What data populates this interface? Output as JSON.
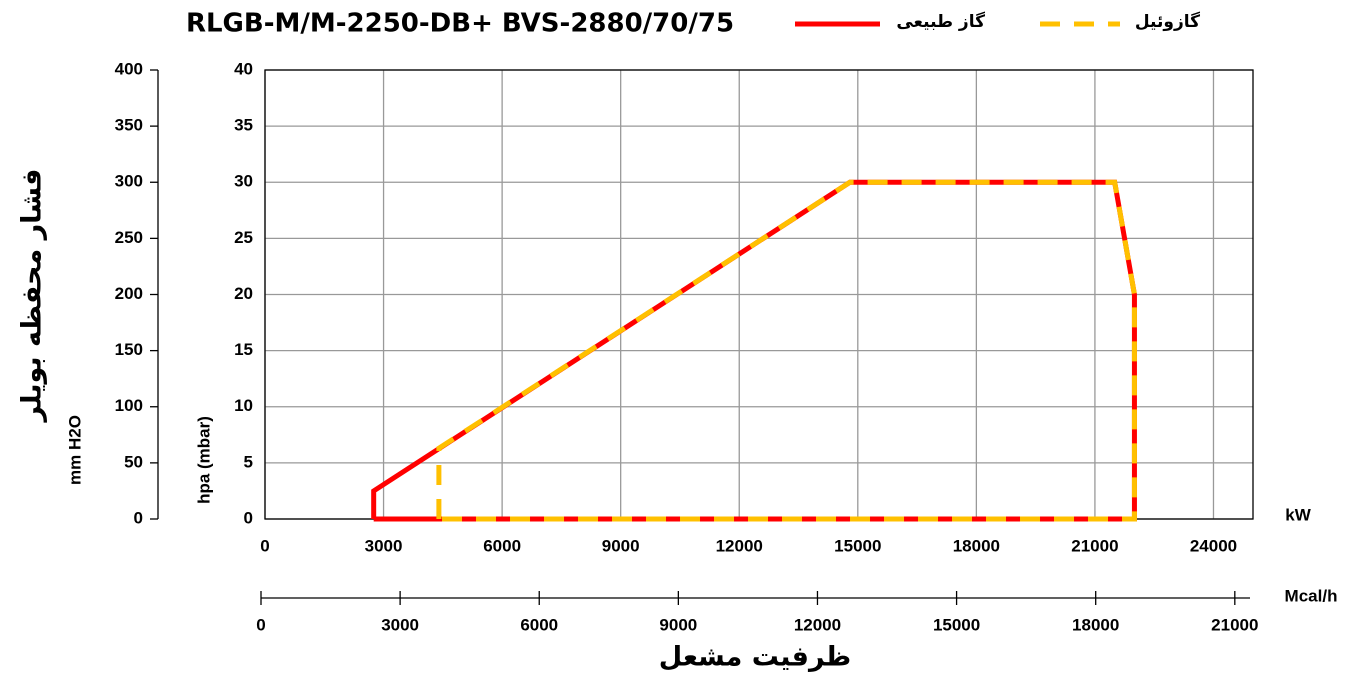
{
  "chart_data": {
    "type": "line",
    "title": "RLGB-M/M-2250-DB+ BVS-2880/70/75",
    "ylabel": "فشار محفظه بویلر",
    "ylabel_unit": "hpa (mbar)",
    "xlabel": "ظرفیت مشعل",
    "xunit": "kW",
    "xlim": [
      0,
      25000
    ],
    "xticks": [
      0,
      3000,
      6000,
      9000,
      12000,
      15000,
      18000,
      21000,
      24000
    ],
    "ylim": [
      0,
      40
    ],
    "yticks": [
      0,
      5,
      10,
      15,
      20,
      25,
      30,
      35,
      40
    ],
    "grid": true,
    "left_axis": {
      "label": "mm H2O",
      "lim": [
        0,
        400
      ],
      "ticks": [
        0,
        50,
        100,
        150,
        200,
        250,
        300,
        350,
        400
      ]
    },
    "bottom_axis": {
      "unit": "Mcal/h",
      "lim": [
        0,
        21500
      ],
      "ticks": [
        0,
        3000,
        6000,
        9000,
        12000,
        15000,
        18000,
        21000
      ]
    },
    "series": [
      {
        "name": "گاز طبیعی",
        "color": "#ff0000",
        "dashed": false,
        "x": [
          2750,
          2750,
          14800,
          21500,
          22000,
          22000,
          2750
        ],
        "values": [
          0,
          2.5,
          30,
          30,
          20,
          0,
          0
        ]
      },
      {
        "name": "گازوئیل",
        "color": "#ffc000",
        "dashed": true,
        "x": [
          4400,
          4400,
          14800,
          21500,
          22000,
          22000,
          4400
        ],
        "values": [
          0,
          6.3,
          30,
          30,
          20,
          0,
          0
        ]
      }
    ]
  }
}
